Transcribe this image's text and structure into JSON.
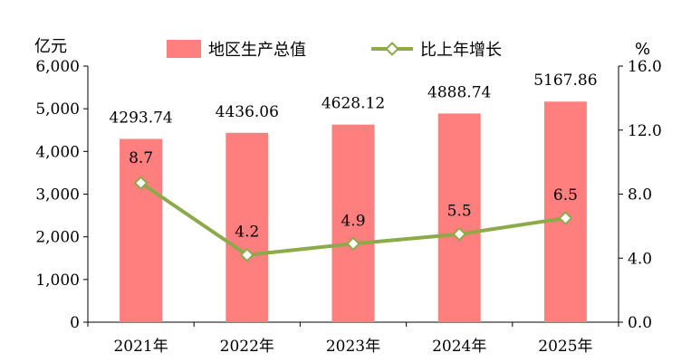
{
  "chart_data": {
    "type": "bar+line",
    "categories": [
      "2021年",
      "2022年",
      "2023年",
      "2024年",
      "2025年"
    ],
    "left_axis": {
      "unit": "亿元",
      "min": 0,
      "max": 6000,
      "ticks": [
        "0",
        "1,000",
        "2,000",
        "3,000",
        "4,000",
        "5,000",
        "6,000"
      ]
    },
    "right_axis": {
      "unit": "%",
      "min": 0,
      "max": 16,
      "ticks": [
        "0.0",
        "4.0",
        "8.0",
        "12.0",
        "16.0"
      ]
    },
    "series": [
      {
        "name": "地区生产总值",
        "type": "bar",
        "axis": "left",
        "color": "#FF7F7F",
        "values": [
          4293.74,
          4436.06,
          4628.12,
          4888.74,
          5167.86
        ],
        "labels": [
          "4293.74",
          "4436.06",
          "4628.12",
          "4888.74",
          "5167.86"
        ]
      },
      {
        "name": "比上年增长",
        "type": "line",
        "axis": "right",
        "color": "#8DAA4A",
        "marker": "diamond",
        "values": [
          8.7,
          4.2,
          4.9,
          5.5,
          6.5
        ],
        "labels": [
          "8.7",
          "4.2",
          "4.9",
          "5.5",
          "6.5"
        ]
      }
    ],
    "legend": "top-center",
    "grid": false
  }
}
